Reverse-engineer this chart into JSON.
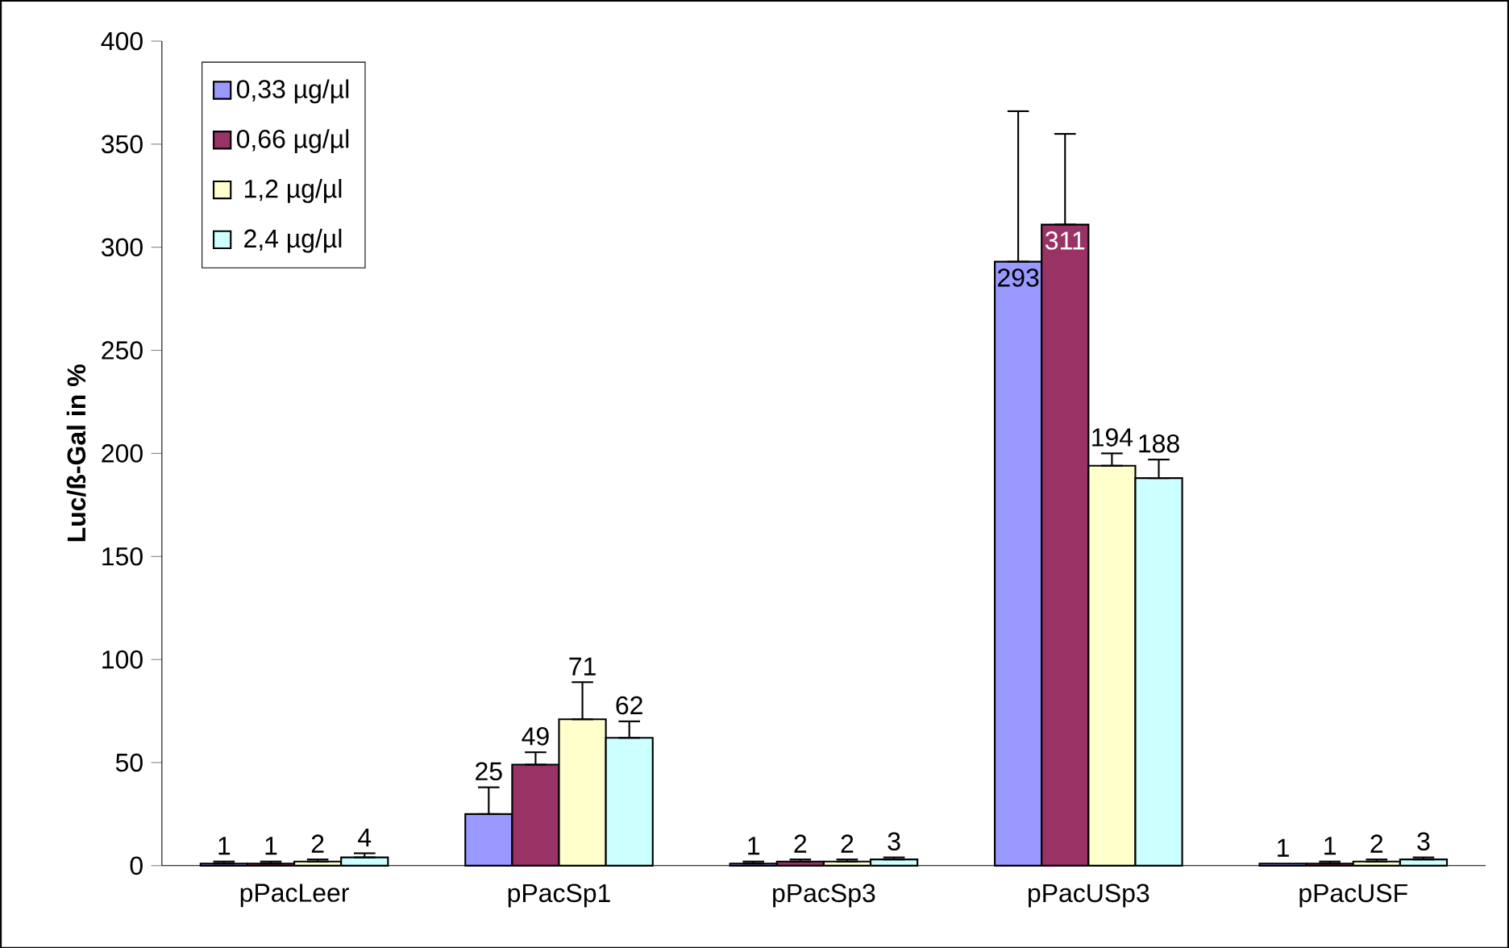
{
  "chart_data": {
    "type": "bar",
    "ylabel": "Luc/ß-Gal in %",
    "categories": [
      "pPacLeer",
      "pPacSp1",
      "pPacSp3",
      "pPacUSp3",
      "pPacUSF"
    ],
    "series": [
      {
        "name": "0,33 µg/µl",
        "color": "#9999ff",
        "values": [
          1,
          25,
          1,
          293,
          1
        ],
        "errors": [
          [
            1,
            2
          ],
          [
            25,
            38
          ],
          [
            1,
            2
          ],
          [
            293,
            366
          ],
          null
        ],
        "value_labels": [
          "1",
          "25",
          "1",
          "293",
          "1"
        ]
      },
      {
        "name": "0,66 µg/µl",
        "color": "#993366",
        "values": [
          1,
          49,
          2,
          311,
          1
        ],
        "errors": [
          [
            1,
            2
          ],
          [
            49,
            55
          ],
          [
            2,
            3
          ],
          [
            311,
            355
          ],
          [
            1,
            2
          ]
        ],
        "value_labels": [
          "1",
          "49",
          "2",
          "311",
          "1"
        ]
      },
      {
        "name": "1,2  µg/µl",
        "color": "#ffffcc",
        "values": [
          2,
          71,
          2,
          194,
          2
        ],
        "errors": [
          [
            2,
            3
          ],
          [
            71,
            89
          ],
          [
            2,
            3
          ],
          [
            194,
            200
          ],
          [
            2,
            3
          ]
        ],
        "value_labels": [
          "2",
          "71",
          "2",
          "194",
          "2"
        ]
      },
      {
        "name": "2,4 µg/µl",
        "color": "#ccffff",
        "values": [
          4,
          62,
          3,
          188,
          3
        ],
        "errors": [
          [
            4,
            6
          ],
          [
            62,
            70
          ],
          [
            3,
            4
          ],
          [
            188,
            197
          ],
          [
            3,
            4
          ]
        ],
        "value_labels": [
          "4",
          "62",
          "3",
          "188",
          "3"
        ]
      }
    ],
    "ylim": [
      0,
      400
    ],
    "yticks": [
      0,
      50,
      100,
      150,
      200,
      250,
      300,
      350,
      400
    ],
    "grid": false,
    "legend": "top left"
  }
}
